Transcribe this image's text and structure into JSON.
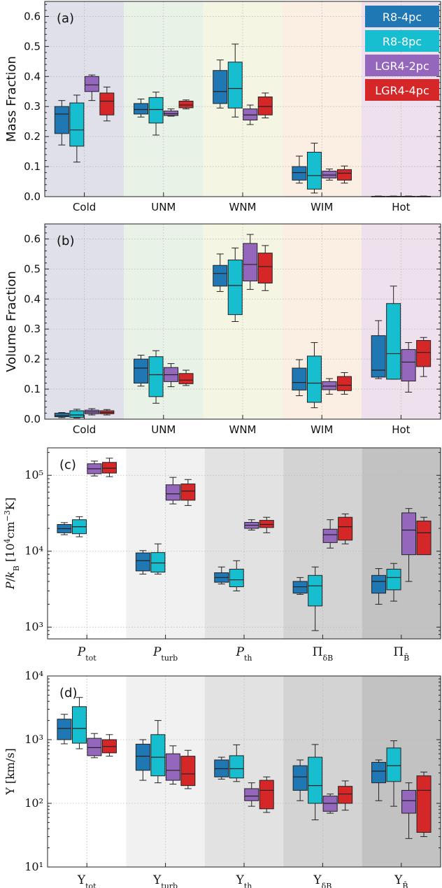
{
  "colors": {
    "R8-4pc": "#1f77b4",
    "R8-8pc": "#17becf",
    "LGR4-2pc": "#9467bd",
    "LGR4-4pc": "#d62728",
    "phase_bg": [
      "#dfe0ea",
      "#e8f2e6",
      "#f4f6e3",
      "#fbeee2",
      "#efe0ee"
    ],
    "quantity_bg": [
      "#ffffff",
      "#f1f1f1",
      "#e2e2e2",
      "#d3d3d3",
      "#c2c2c2"
    ]
  },
  "legend": [
    "R8-4pc",
    "R8-8pc",
    "LGR4-2pc",
    "LGR4-4pc"
  ],
  "chart_data": [
    {
      "panel": "(a)",
      "type": "box",
      "ylabel": "Mass Fraction",
      "yscale": "linear",
      "ylim": [
        0,
        0.65
      ],
      "yticks": [
        0.0,
        0.1,
        0.2,
        0.3,
        0.4,
        0.5,
        0.6
      ],
      "ytick_labels": [
        "0.0",
        "0.1",
        "0.2",
        "0.3",
        "0.4",
        "0.5",
        "0.6"
      ],
      "categories": [
        "Cold",
        "UNM",
        "WNM",
        "WIM",
        "Hot"
      ],
      "legend_position": "top-right",
      "series": [
        {
          "name": "R8-4pc",
          "boxes": [
            [
              0.172,
              0.21,
              0.275,
              0.3,
              0.32
            ],
            [
              0.265,
              0.275,
              0.29,
              0.31,
              0.325
            ],
            [
              0.295,
              0.31,
              0.35,
              0.42,
              0.455
            ],
            [
              0.045,
              0.055,
              0.08,
              0.1,
              0.135
            ],
            [
              0.0,
              0.0,
              0.001,
              0.001,
              0.002
            ]
          ]
        },
        {
          "name": "R8-8pc",
          "boxes": [
            [
              0.115,
              0.168,
              0.222,
              0.312,
              0.338
            ],
            [
              0.205,
              0.245,
              0.29,
              0.33,
              0.348
            ],
            [
              0.265,
              0.295,
              0.36,
              0.448,
              0.508
            ],
            [
              0.012,
              0.025,
              0.07,
              0.148,
              0.178
            ],
            [
              0.0,
              0.0,
              0.001,
              0.001,
              0.002
            ]
          ]
        },
        {
          "name": "LGR4-2pc",
          "boxes": [
            [
              0.32,
              0.35,
              0.372,
              0.4,
              0.405
            ],
            [
              0.268,
              0.27,
              0.276,
              0.285,
              0.292
            ],
            [
              0.24,
              0.255,
              0.272,
              0.292,
              0.305
            ],
            [
              0.055,
              0.062,
              0.072,
              0.085,
              0.092
            ],
            [
              0.0,
              0.0,
              0.001,
              0.001,
              0.002
            ]
          ]
        },
        {
          "name": "LGR4-4pc",
          "boxes": [
            [
              0.252,
              0.272,
              0.318,
              0.345,
              0.365
            ],
            [
              0.292,
              0.296,
              0.305,
              0.318,
              0.322
            ],
            [
              0.262,
              0.272,
              0.3,
              0.332,
              0.345
            ],
            [
              0.045,
              0.055,
              0.078,
              0.09,
              0.102
            ],
            [
              0.0,
              0.0,
              0.001,
              0.001,
              0.002
            ]
          ]
        }
      ]
    },
    {
      "panel": "(b)",
      "type": "box",
      "ylabel": "Volume Fraction",
      "yscale": "linear",
      "ylim": [
        0,
        0.65
      ],
      "yticks": [
        0.0,
        0.1,
        0.2,
        0.3,
        0.4,
        0.5,
        0.6
      ],
      "ytick_labels": [
        "0.0",
        "0.1",
        "0.2",
        "0.3",
        "0.4",
        "0.5",
        "0.6"
      ],
      "categories": [
        "Cold",
        "UNM",
        "WNM",
        "WIM",
        "Hot"
      ],
      "series": [
        {
          "name": "R8-4pc",
          "boxes": [
            [
              0.005,
              0.008,
              0.012,
              0.02,
              0.022
            ],
            [
              0.11,
              0.12,
              0.17,
              0.2,
              0.213
            ],
            [
              0.425,
              0.443,
              0.485,
              0.512,
              0.55
            ],
            [
              0.078,
              0.097,
              0.122,
              0.17,
              0.198
            ],
            [
              0.135,
              0.14,
              0.163,
              0.278,
              0.328
            ]
          ]
        },
        {
          "name": "R8-8pc",
          "boxes": [
            [
              0.004,
              0.006,
              0.014,
              0.028,
              0.033
            ],
            [
              0.053,
              0.075,
              0.148,
              0.208,
              0.228
            ],
            [
              0.325,
              0.348,
              0.445,
              0.53,
              0.57
            ],
            [
              0.038,
              0.056,
              0.12,
              0.21,
              0.255
            ],
            [
              0.133,
              0.133,
              0.218,
              0.385,
              0.443
            ]
          ]
        },
        {
          "name": "LGR4-2pc",
          "boxes": [
            [
              0.014,
              0.018,
              0.024,
              0.03,
              0.035
            ],
            [
              0.108,
              0.125,
              0.148,
              0.172,
              0.185
            ],
            [
              0.432,
              0.46,
              0.515,
              0.585,
              0.615
            ],
            [
              0.083,
              0.098,
              0.11,
              0.125,
              0.135
            ],
            [
              0.09,
              0.127,
              0.19,
              0.232,
              0.255
            ]
          ]
        },
        {
          "name": "LGR4-4pc",
          "boxes": [
            [
              0.014,
              0.018,
              0.022,
              0.028,
              0.032
            ],
            [
              0.112,
              0.118,
              0.13,
              0.152,
              0.163
            ],
            [
              0.428,
              0.453,
              0.508,
              0.553,
              0.578
            ],
            [
              0.083,
              0.095,
              0.113,
              0.142,
              0.155
            ],
            [
              0.142,
              0.175,
              0.222,
              0.262,
              0.272
            ]
          ]
        }
      ]
    },
    {
      "panel": "(c)",
      "type": "box",
      "ylabel": "P/k_B [10^4 cm^-3 K]",
      "yscale": "log",
      "ylim": [
        700,
        230000
      ],
      "yticks": [
        1000,
        10000,
        100000
      ],
      "ytick_labels": [
        "10³",
        "10⁴",
        "10⁵"
      ],
      "categories": [
        "P_tot",
        "P_turb",
        "P_th",
        "Π_δB",
        "Π_B̄"
      ],
      "series": [
        {
          "name": "R8-4pc",
          "boxes": [
            [
              16500,
              17500,
              19800,
              22500,
              23800
            ],
            [
              5000,
              5500,
              7500,
              9500,
              10200
            ],
            [
              3700,
              3900,
              4500,
              5200,
              6200
            ],
            [
              2700,
              2800,
              3400,
              4000,
              4500
            ],
            [
              2000,
              2800,
              4000,
              4800,
              5900
            ]
          ]
        },
        {
          "name": "R8-8pc",
          "boxes": [
            [
              15500,
              17000,
              21000,
              26000,
              28500
            ],
            [
              5000,
              5300,
              7000,
              9600,
              12500
            ],
            [
              3000,
              3400,
              4200,
              5800,
              7500
            ],
            [
              900,
              1900,
              3500,
              4800,
              6200
            ],
            [
              2200,
              3100,
              4500,
              5800,
              6900
            ]
          ]
        },
        {
          "name": "LGR4-2pc",
          "boxes": [
            [
              98000,
              105000,
              122000,
              142000,
              154000
            ],
            [
              42000,
              47000,
              57000,
              75000,
              94000
            ],
            [
              19000,
              20000,
              22000,
              24000,
              26000
            ],
            [
              11000,
              13000,
              16500,
              19500,
              26000
            ],
            [
              4000,
              9000,
              19000,
              32000,
              36500
            ]
          ]
        },
        {
          "name": "LGR4-4pc",
          "boxes": [
            [
              96000,
              107000,
              124000,
              148000,
              168000
            ],
            [
              40000,
              47000,
              62000,
              77000,
              88000
            ],
            [
              17500,
              20500,
              22500,
              25500,
              28000
            ],
            [
              12500,
              14000,
              21000,
              28000,
              31000
            ],
            [
              12500,
              9000,
              17500,
              25000,
              28000
            ]
          ]
        }
      ]
    },
    {
      "panel": "(d)",
      "type": "box",
      "ylabel": "Υ [km/s]",
      "yscale": "log",
      "ylim": [
        10,
        10000
      ],
      "yticks": [
        10,
        100,
        1000,
        10000
      ],
      "ytick_labels": [
        "10¹",
        "10²",
        "10³",
        "10⁴"
      ],
      "categories": [
        "Υ_tot",
        "Υ_turb",
        "Υ_th",
        "Υ_δB",
        "Υ_B̄"
      ],
      "series": [
        {
          "name": "R8-4pc",
          "boxes": [
            [
              860,
              1000,
              1500,
              2100,
              2500
            ],
            [
              230,
              330,
              550,
              850,
              1000
            ],
            [
              240,
              260,
              350,
              480,
              530
            ],
            [
              110,
              160,
              260,
              390,
              480
            ],
            [
              110,
              210,
              320,
              440,
              480
            ]
          ]
        },
        {
          "name": "R8-8pc",
          "boxes": [
            [
              720,
              880,
              1500,
              3300,
              4600
            ],
            [
              210,
              270,
              530,
              1200,
              2000
            ],
            [
              220,
              250,
              350,
              560,
              830
            ],
            [
              55,
              100,
              190,
              530,
              840
            ],
            [
              90,
              220,
              390,
              740,
              960
            ]
          ]
        },
        {
          "name": "LGR4-2pc",
          "boxes": [
            [
              520,
              560,
              750,
              1050,
              1250
            ],
            [
              200,
              230,
              330,
              600,
              800
            ],
            [
              90,
              110,
              130,
              170,
              210
            ],
            [
              70,
              75,
              100,
              130,
              140
            ],
            [
              28,
              70,
              110,
              160,
              210
            ]
          ]
        },
        {
          "name": "LGR4-4pc",
          "boxes": [
            [
              550,
              620,
              780,
              1000,
              1200
            ],
            [
              170,
              190,
              290,
              550,
              680
            ],
            [
              72,
              82,
              160,
              230,
              260
            ],
            [
              78,
              100,
              140,
              185,
              225
            ],
            [
              30,
              35,
              160,
              270,
              310
            ]
          ]
        }
      ]
    }
  ]
}
